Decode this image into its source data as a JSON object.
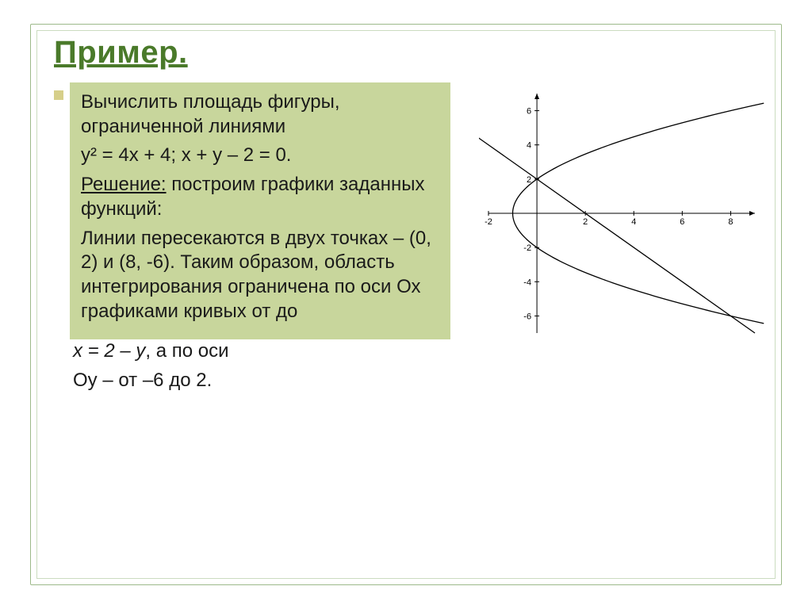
{
  "title": {
    "text": "Пример.",
    "color": "#4a7a2a"
  },
  "bullet": {
    "color": "#d6cf8a"
  },
  "highlight_bg": "#c8d69c",
  "text_color": "#1a1a1a",
  "p1": "Вычислить площадь фигуры, ограниченной линиями",
  "p2": "у² = 4х + 4; х + у – 2 = 0.",
  "p3_a": "Решение:",
  "p3_b": " построим графики заданных функций:",
  "p4": "Линии пересекаются в двух точках – (0, 2) и (8, -6). Таким образом, область интегрирования ограничена по оси Ох графиками кривых от  до",
  "p5_a": "х = 2 – у",
  "p5_b": ", а по оси",
  "p6": "Оу – от –6 до 2.",
  "chart": {
    "x_range": [
      -2,
      9
    ],
    "y_range": [
      -7,
      7
    ],
    "x_ticks": [
      -2,
      2,
      4,
      6,
      8
    ],
    "y_ticks": [
      -6,
      -4,
      -2,
      2,
      4,
      6
    ],
    "axis_color": "#000000",
    "curve_color": "#000000",
    "line_p1": [
      -3,
      5
    ],
    "line_p2": [
      9,
      -7
    ],
    "parabola_xmin": -1
  }
}
